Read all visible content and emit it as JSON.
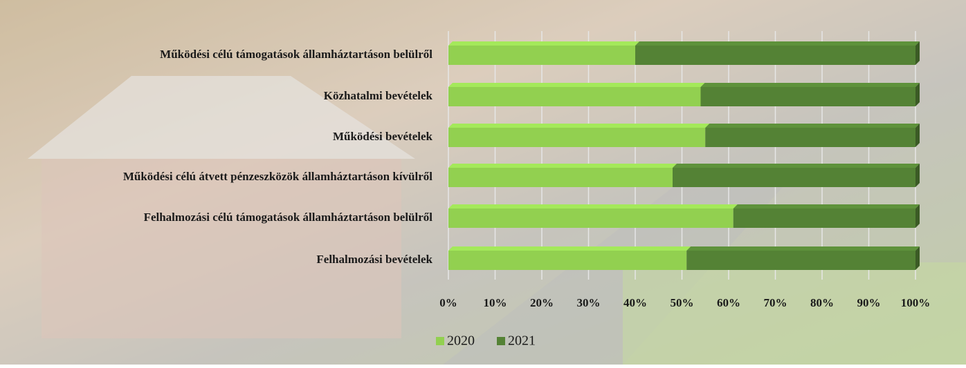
{
  "chart_data": {
    "type": "stacked-bar-horizontal",
    "categories": [
      "Működési célú támogatások államháztartáson belülről",
      "Közhatalmi bevételek",
      "Működési bevételek",
      "Működési célú átvett pénzeszközök államháztartáson kívülről",
      "Felhalmozási célú támogatások államháztartáson belülről",
      "Felhalmozási bevételek"
    ],
    "series": [
      {
        "name": "2020",
        "color": "#92d050",
        "values": [
          40,
          54,
          55,
          48,
          61,
          51
        ]
      },
      {
        "name": "2021",
        "color": "#548235",
        "values": [
          60,
          46,
          45,
          52,
          39,
          49
        ]
      }
    ],
    "xlim": [
      0,
      100
    ],
    "xticks": [
      {
        "value": 0,
        "label": "0%"
      },
      {
        "value": 10,
        "label": "10%"
      },
      {
        "value": 20,
        "label": "20%"
      },
      {
        "value": 30,
        "label": "30%"
      },
      {
        "value": 40,
        "label": "40%"
      },
      {
        "value": 50,
        "label": "50%"
      },
      {
        "value": 60,
        "label": "60%"
      },
      {
        "value": 70,
        "label": "70%"
      },
      {
        "value": 80,
        "label": "80%"
      },
      {
        "value": 90,
        "label": "90%"
      },
      {
        "value": 100,
        "label": "100%"
      }
    ],
    "grid": true,
    "legend": "bottom"
  }
}
